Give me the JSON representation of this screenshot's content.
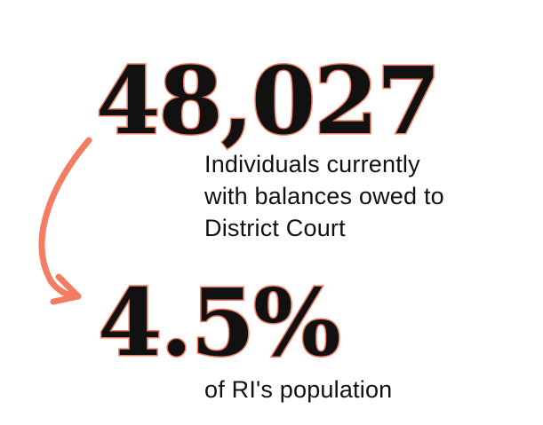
{
  "stats": [
    {
      "value": "48,027",
      "caption_lines": [
        "Individuals currently",
        "with balances owed to",
        "District Court"
      ]
    },
    {
      "value": "4.5%",
      "caption_lines": [
        "of RI's population"
      ]
    }
  ],
  "colors": {
    "accent": "#f47c63",
    "text": "#111111",
    "background": "#ffffff"
  },
  "icons": {
    "connector": "curved-arrow-icon"
  }
}
